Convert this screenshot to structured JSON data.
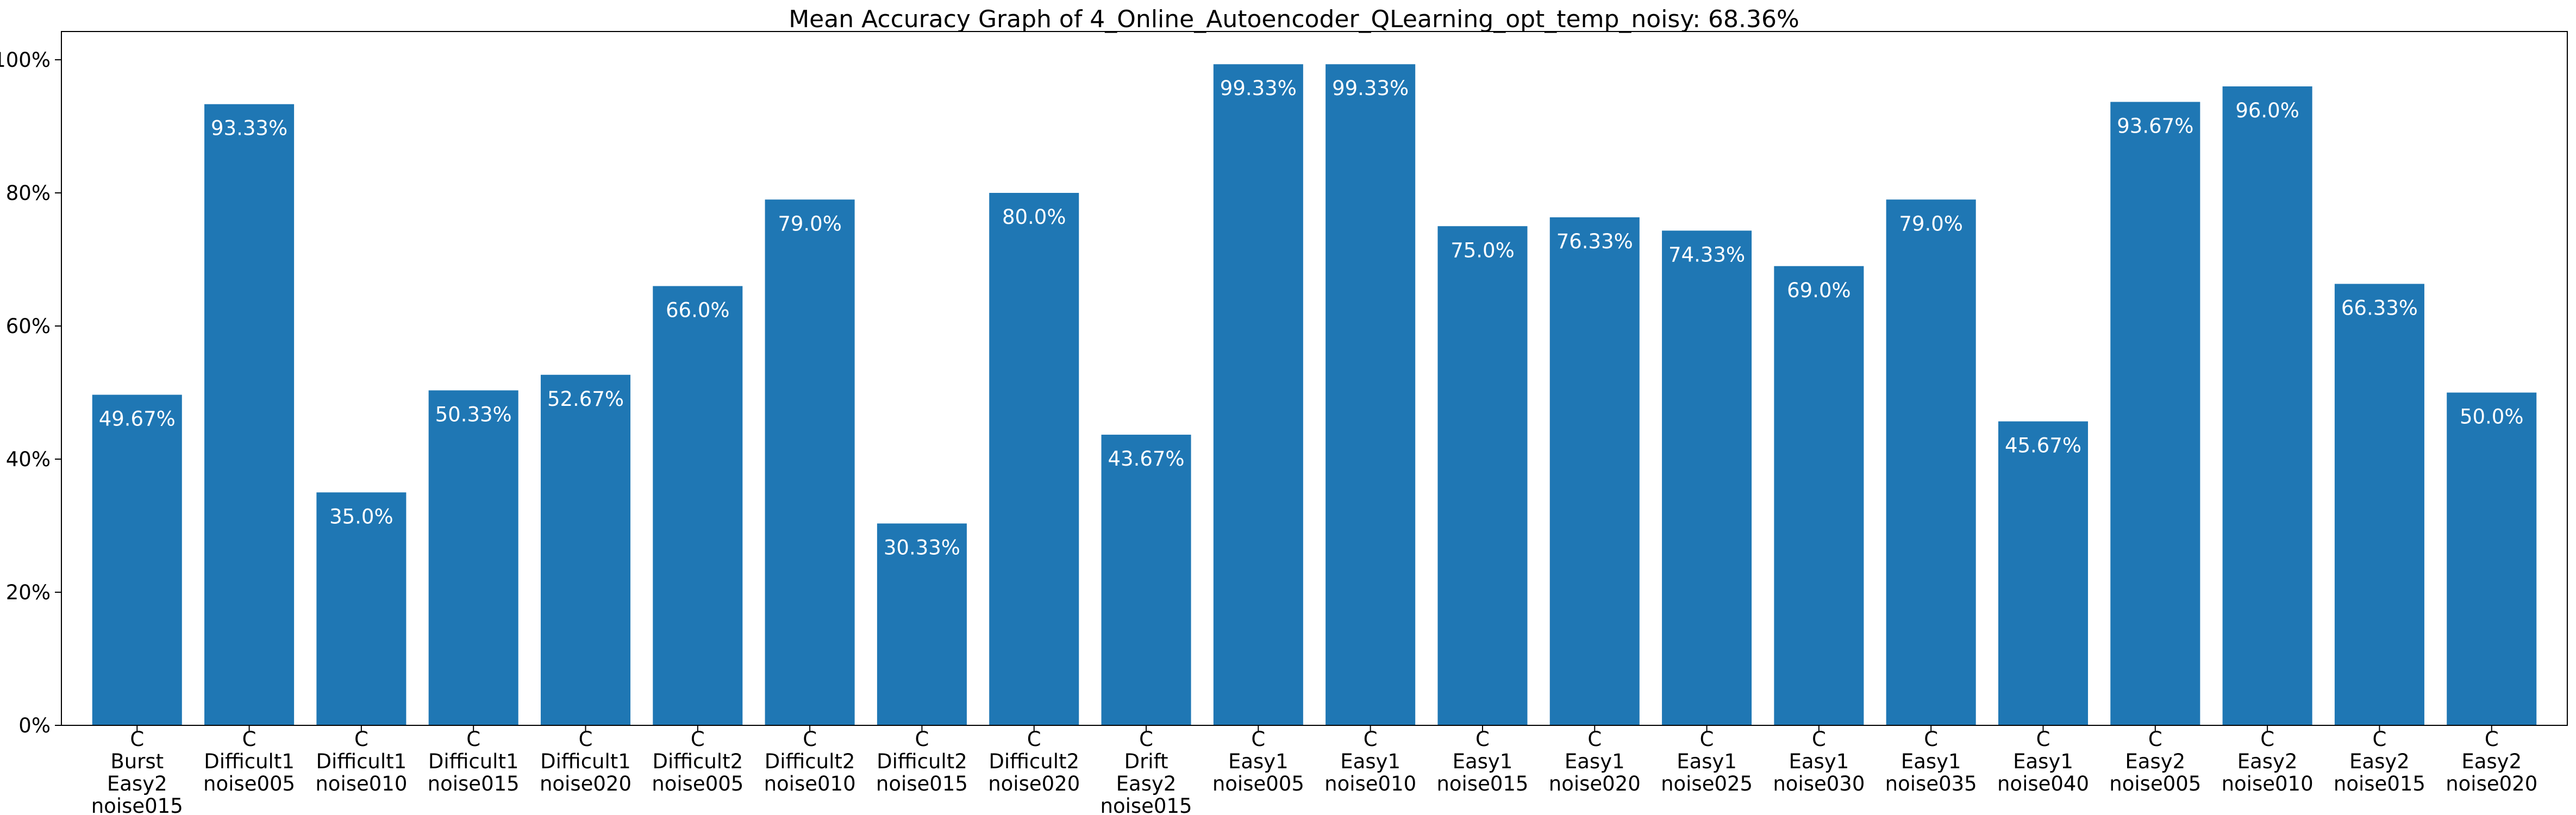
{
  "chart_data": {
    "type": "bar",
    "title": "Mean Accuracy Graph of 4_Online_Autoencoder_QLearning_opt_temp_noisy: 68.36%",
    "xlabel": "",
    "ylabel": "",
    "ylim": [
      0,
      1.0
    ],
    "yticks": [
      0,
      0.2,
      0.4,
      0.6,
      0.8,
      1.0
    ],
    "ytick_labels": [
      "0%",
      "20%",
      "40%",
      "60%",
      "80%",
      "100%"
    ],
    "grid": false,
    "legend": "none",
    "bar_color": "#1f77b4",
    "label_color": "#ffffff",
    "categories": [
      [
        "C",
        "Burst",
        "Easy2",
        "noise015"
      ],
      [
        "C",
        "Difficult1",
        "noise005"
      ],
      [
        "C",
        "Difficult1",
        "noise010"
      ],
      [
        "C",
        "Difficult1",
        "noise015"
      ],
      [
        "C",
        "Difficult1",
        "noise020"
      ],
      [
        "C",
        "Difficult2",
        "noise005"
      ],
      [
        "C",
        "Difficult2",
        "noise010"
      ],
      [
        "C",
        "Difficult2",
        "noise015"
      ],
      [
        "C",
        "Difficult2",
        "noise020"
      ],
      [
        "C",
        "Drift",
        "Easy2",
        "noise015"
      ],
      [
        "C",
        "Easy1",
        "noise005"
      ],
      [
        "C",
        "Easy1",
        "noise010"
      ],
      [
        "C",
        "Easy1",
        "noise015"
      ],
      [
        "C",
        "Easy1",
        "noise020"
      ],
      [
        "C",
        "Easy1",
        "noise025"
      ],
      [
        "C",
        "Easy1",
        "noise030"
      ],
      [
        "C",
        "Easy1",
        "noise035"
      ],
      [
        "C",
        "Easy1",
        "noise040"
      ],
      [
        "C",
        "Easy2",
        "noise005"
      ],
      [
        "C",
        "Easy2",
        "noise010"
      ],
      [
        "C",
        "Easy2",
        "noise015"
      ],
      [
        "C",
        "Easy2",
        "noise020"
      ]
    ],
    "values": [
      0.4967,
      0.9333,
      0.35,
      0.5033,
      0.5267,
      0.66,
      0.79,
      0.3033,
      0.8,
      0.4367,
      0.9933,
      0.9933,
      0.75,
      0.7633,
      0.7433,
      0.69,
      0.79,
      0.4567,
      0.9367,
      0.96,
      0.6633,
      0.5
    ],
    "data_labels": [
      "49.67%",
      "93.33%",
      "35.0%",
      "50.33%",
      "52.67%",
      "66.0%",
      "79.0%",
      "30.33%",
      "80.0%",
      "43.67%",
      "99.33%",
      "99.33%",
      "75.0%",
      "76.33%",
      "74.33%",
      "69.0%",
      "79.0%",
      "45.67%",
      "93.67%",
      "96.0%",
      "66.33%",
      "50.0%"
    ]
  }
}
